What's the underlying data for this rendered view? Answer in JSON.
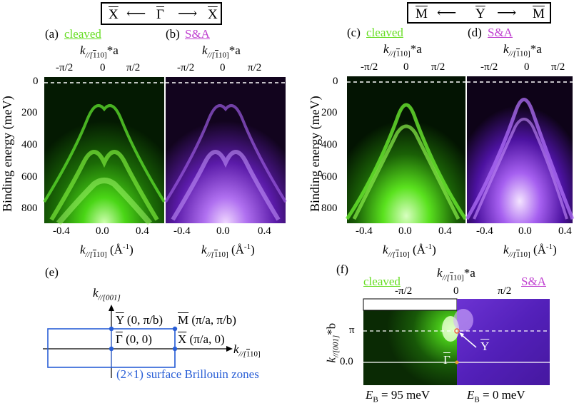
{
  "header_left": {
    "l": "X",
    "m": "Γ",
    "r": "X"
  },
  "header_right": {
    "l": "M",
    "m": "Y",
    "r": "M"
  },
  "panels": {
    "a": {
      "letter": "(a)",
      "sample": "cleaved"
    },
    "b": {
      "letter": "(b)",
      "sample": "S&A"
    },
    "c": {
      "letter": "(c)",
      "sample": "cleaved"
    },
    "d": {
      "letter": "(d)",
      "sample": "S&A"
    },
    "e": {
      "letter": "(e)"
    },
    "f": {
      "letter": "(f)",
      "sample_left": "cleaved",
      "sample_right": "S&A"
    }
  },
  "axes": {
    "top_k_base": "k",
    "top_k_sub": "//[",
    "top_k_sub_bar": "1",
    "top_k_sub_end": "10]",
    "top_k_suffix": "*a",
    "top_ticks": [
      "-π/2",
      "0",
      "π/2"
    ],
    "bottom_ticks": [
      "-0.4",
      "0.0",
      "0.4"
    ],
    "bottom_unit": "(Å",
    "bottom_unit_exp": "-1",
    "bottom_unit_end": ")",
    "y_label": "Binding energy (meV)",
    "y_ticks": [
      "0",
      "200",
      "400",
      "600",
      "800"
    ]
  },
  "bz": {
    "axis_v_base": "k",
    "axis_v_sub": "//[001]",
    "axis_h_base": "k",
    "axis_h_sub": "//[",
    "axis_h_sub_bar": "1",
    "axis_h_sub_end": "10]",
    "Y_letter": "Y",
    "Y_coord": " (0, π/b)",
    "M_letter": "M",
    "M_coord": " (π/a, π/b)",
    "G_letter": "Γ",
    "G_coord": " (0, 0)",
    "X_letter": "X",
    "X_coord": " (π/a, 0)",
    "caption": "(2×1) surface Brillouin zones"
  },
  "f_panel": {
    "y_ticks": [
      "π",
      "0.0"
    ],
    "y_label_base": "k",
    "y_label_sub": "//[001]",
    "y_label_suffix": "*b",
    "top_ticks": [
      "-π/2",
      "0",
      "π/2"
    ],
    "Y_mark": "Y",
    "G_mark": "Γ",
    "EB_left_base": "E",
    "EB_left_sub": "B",
    "EB_left_val": " = 95 meV",
    "EB_right_base": "E",
    "EB_right_sub": "B",
    "EB_right_val": " = 0 meV"
  },
  "colors": {
    "green": "#66dd22",
    "purple": "#c040d0",
    "bz_blue": "#2a5fd6"
  }
}
